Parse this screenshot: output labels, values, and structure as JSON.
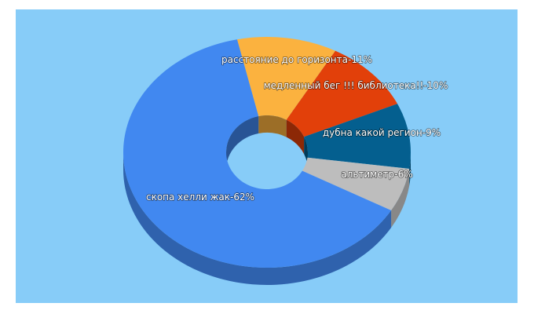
{
  "chart_data": {
    "type": "pie",
    "donut": true,
    "labels": [
      "расстояние до горизонта-11%",
      "медленный бег !!! библиотека!!-10%",
      "дубна какой регион-9%",
      "альтиметр-6%",
      "скопа хелли жак-62%"
    ],
    "categories": [
      "расстояние до горизонта",
      "медленный бег !!! библиотека!!",
      "дубна какой регион",
      "альтиметр",
      "скопа хелли жак"
    ],
    "values": [
      11,
      10,
      9,
      6,
      62
    ],
    "colors": [
      "#fbb23f",
      "#e2400a",
      "#045f8f",
      "#bdbdbd",
      "#4188f0"
    ]
  },
  "background_color": "#87ccf8"
}
